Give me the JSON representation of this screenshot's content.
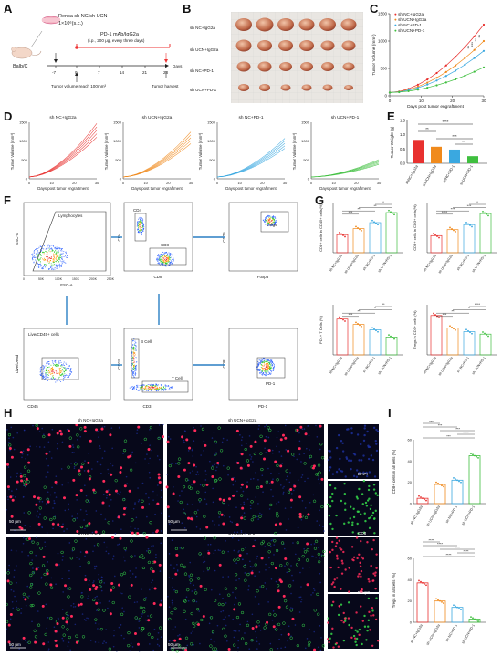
{
  "panels": {
    "A": "A",
    "B": "B",
    "C": "C",
    "D": "D",
    "E": "E",
    "F": "F",
    "G": "G",
    "H": "H",
    "I": "I"
  },
  "groups": [
    "sh NC+IgG2a",
    "sh UCN+IgG2a",
    "sh NC+PD-1",
    "sh UCN+PD-1"
  ],
  "groups_short": [
    "shNC+IgG2a",
    "shUCN+IgG2a",
    "shNC+PD-1",
    "shUCN+PD-1"
  ],
  "colors": {
    "nc_igg": "#e8312f",
    "ucn_igg": "#f08a1c",
    "nc_pd1": "#3aa8e0",
    "ucn_pd1": "#3fbf3f"
  },
  "timeline": {
    "inoculation": "Renca sh NC/sh UCN",
    "dose": "1×10⁶(s.c.)",
    "mouse": "Balb/C",
    "treatment": "PD-1 mAb/IgG2a",
    "treatment_detail": "(i.p., 200 μg, every three days)",
    "days": [
      "-7",
      "0",
      "7",
      "14",
      "21",
      "28"
    ],
    "days_label": "Days",
    "note_start": "Tumor volume reach 100mm³",
    "note_end": "Tumor harvest"
  },
  "chart_c": {
    "ylabel": "Tumor Volume (mm³)",
    "xlabel": "Days post tumor engraftment",
    "xticks": [
      "0",
      "10",
      "20",
      "30"
    ],
    "yticks": [
      "0",
      "500",
      "1000",
      "1500"
    ],
    "sig": [
      "**",
      "**",
      "***",
      "**"
    ]
  },
  "chart_d": {
    "titles": [
      "sh NC+IgG2a",
      "sh UCN+IgG2a",
      "sh NC+PD-1",
      "sh UCN+PD-1"
    ],
    "ylabel": "Tumor Volume (mm³)",
    "xlabel": "Days post tumor engraftment",
    "xticks": [
      "0",
      "10",
      "20",
      "30"
    ],
    "yticks": [
      "0",
      "500",
      "1000",
      "1500"
    ]
  },
  "chart_e": {
    "ylabel": "Tumor Weight (g)",
    "yticks": [
      "0.0",
      "0.5",
      "1.0",
      "1.5"
    ],
    "sig": [
      "****",
      "**",
      "***",
      "**"
    ]
  },
  "flow": {
    "lymphocytes": "Lymphocytes",
    "ssc": "SSC-A",
    "fsc": "FSC-A",
    "live": "Live/CD45+ cells",
    "livedead": "Live/Dead",
    "cd45": "CD45",
    "cd4": "CD4",
    "cd8": "CD8",
    "cd8x": "CD8",
    "bcell": "B Cell",
    "tcell": "T Cell",
    "cd19": "CD19",
    "cd3": "CD3",
    "tregs": "Tregs",
    "cd25": "CD25",
    "foxp3": "Foxp3",
    "pd1gate": "PD-1",
    "cd8y": "CD8",
    "pd1x": "PD-1",
    "fsc_ticks": [
      "0",
      "50K",
      "100K",
      "150K",
      "200K",
      "250K"
    ]
  },
  "chart_g": {
    "ylabels": [
      "CD8+ cells in CD45+ cells(%)",
      "CD8+ cells in CD3+ cells(%)",
      "PD1+ T Cells (%)",
      "Tregs in CD3+ cells (%)"
    ],
    "sig": [
      "***",
      "**",
      "**",
      "*",
      "****",
      "***",
      "***",
      "*",
      "***",
      "**",
      "*",
      "**",
      "***",
      "**",
      "*",
      "****"
    ]
  },
  "micro": {
    "labels": [
      "sh NC+IgG2a",
      "sh UCN+IgG2a",
      "sh NC+PD-1",
      "sh UCN+PD-1"
    ],
    "scale": "50 μm",
    "channels": [
      "DAPI",
      "CD8",
      "Foxp3",
      "Merge"
    ]
  },
  "chart_i": {
    "ylabels": [
      "CD8+ cells in all cells (%)",
      "Tregs in all cells (%)"
    ],
    "yticks_top": [
      "0",
      "20",
      "40",
      "60"
    ],
    "yticks_bottom": [
      "0",
      "20",
      "40",
      "60"
    ],
    "sig_top": [
      "***",
      "***",
      "****",
      "****",
      "***"
    ],
    "sig_bottom": [
      "****",
      "****",
      "****",
      "****",
      "****"
    ]
  }
}
